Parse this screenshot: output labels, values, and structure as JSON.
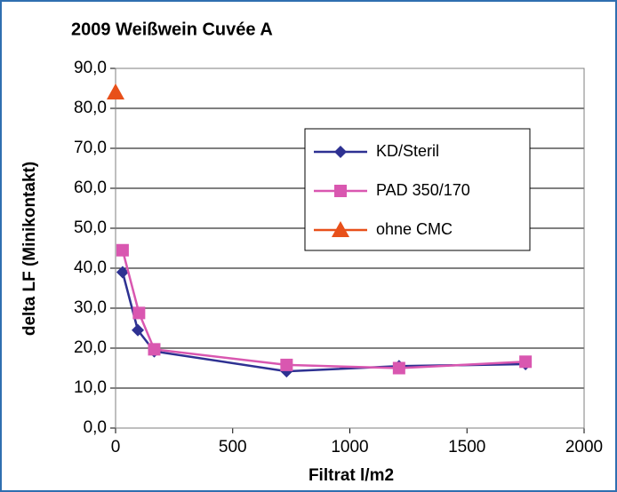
{
  "chart_data": {
    "type": "scatter",
    "title": "2009 Weißwein Cuvée A",
    "xlabel": "Filtrat l/m2",
    "ylabel": "delta LF (Minikontakt)",
    "xlim": [
      0,
      2000
    ],
    "xticks": [
      0,
      500,
      1000,
      1500,
      2000
    ],
    "ylim": [
      0,
      90
    ],
    "yticks": [
      {
        "value": 0,
        "label": "0,0"
      },
      {
        "value": 10,
        "label": "10,0"
      },
      {
        "value": 20,
        "label": "20,0"
      },
      {
        "value": 30,
        "label": "30,0"
      },
      {
        "value": 40,
        "label": "40,0"
      },
      {
        "value": 50,
        "label": "50,0"
      },
      {
        "value": 60,
        "label": "60,0"
      },
      {
        "value": 70,
        "label": "70,0"
      },
      {
        "value": 80,
        "label": "80,0"
      },
      {
        "value": 90,
        "label": "90,0"
      }
    ],
    "grid": true,
    "legend": "upper right",
    "series": [
      {
        "name": "KD/Steril",
        "color": "#2e3192",
        "marker": "diamond",
        "x": [
          30,
          95,
          165,
          730,
          1210,
          1750
        ],
        "values": [
          39,
          24.5,
          19.2,
          14.2,
          15.5,
          16
        ]
      },
      {
        "name": "PAD 350/170",
        "color": "#d957b0",
        "marker": "square",
        "x": [
          30,
          100,
          165,
          730,
          1210,
          1750
        ],
        "values": [
          44.5,
          28.8,
          19.7,
          15.8,
          15,
          16.6
        ]
      },
      {
        "name": "ohne CMC",
        "color": "#e8501a",
        "marker": "triangle",
        "x": [
          0
        ],
        "values": [
          84
        ]
      }
    ]
  }
}
